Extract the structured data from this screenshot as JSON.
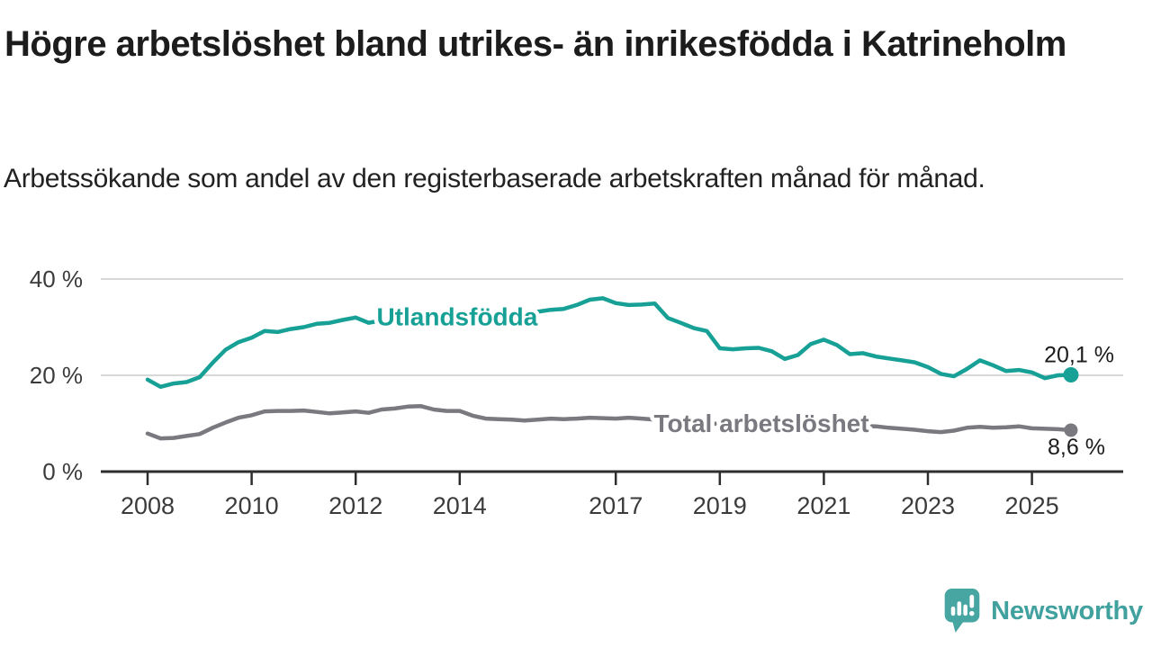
{
  "title": "Högre arbetslöshet bland utrikes- än inrikesfödda i Katrineholm",
  "subtitle": "Arbetssökande som andel av den registerbaserade arbetskraften månad för månad.",
  "branding": {
    "logo_text": "Newsworthy",
    "logo_color": "#41a19e"
  },
  "colors": {
    "axis": "#2e2e2e",
    "grid": "#d8d8d8",
    "tick_text": "#3b3b3b",
    "value_text": "#1c1c1c",
    "background": "#ffffff"
  },
  "chart_data": {
    "type": "line",
    "title": "Högre arbetslöshet bland utrikes- än inrikesfödda i Katrineholm",
    "subtitle": "Arbetssökande som andel av den registerbaserade arbetskraften månad för månad.",
    "unit": "%",
    "grid": "horizontal",
    "legend_position": "inline-labels",
    "x_start": 2008,
    "x_step_years": 0.25,
    "x_range_years": [
      2008,
      2025.75
    ],
    "ylim": [
      0,
      44
    ],
    "x_ticks": [
      2008,
      2010,
      2012,
      2014,
      2017,
      2019,
      2021,
      2023,
      2025
    ],
    "y_ticks": [
      {
        "value": 0,
        "label": "0 %",
        "grid": false
      },
      {
        "value": 20,
        "label": "20 %",
        "grid": true
      },
      {
        "value": 40,
        "label": "40 %",
        "grid": true
      }
    ],
    "series": [
      {
        "name": "Utlandsfödda",
        "color": "#17a096",
        "end_value": 20.1,
        "end_value_label": "20,1 %",
        "label_anchor": {
          "t": 2013.95,
          "v": 32.2
        },
        "values": [
          19.1,
          17.6,
          18.3,
          18.6,
          19.6,
          22.6,
          25.3,
          26.9,
          27.8,
          29.2,
          29.0,
          29.6,
          30.0,
          30.7,
          30.9,
          31.5,
          32.0,
          30.9,
          31.4,
          31.4,
          31.3,
          31.0,
          31.0,
          31.2,
          31.4,
          31.7,
          32.0,
          32.4,
          32.6,
          32.9,
          33.2,
          33.6,
          33.8,
          34.6,
          35.7,
          36.0,
          35.0,
          34.6,
          34.7,
          34.9,
          31.9,
          30.9,
          29.8,
          29.2,
          25.6,
          25.4,
          25.6,
          25.7,
          25.0,
          23.4,
          24.2,
          26.5,
          27.4,
          26.3,
          24.4,
          24.6,
          23.9,
          23.5,
          23.1,
          22.7,
          21.7,
          20.3,
          19.8,
          21.3,
          23.1,
          22.1,
          20.9,
          21.1,
          20.6,
          19.4,
          20.0,
          20.1
        ]
      },
      {
        "name": "Total arbetslöshet",
        "color": "#7a7980",
        "end_value": 8.6,
        "end_value_label": "8,6 %",
        "label_anchor": {
          "t": 2019.8,
          "v": 10.1
        },
        "values": [
          7.9,
          6.9,
          7.0,
          7.4,
          7.8,
          9.1,
          10.2,
          11.2,
          11.7,
          12.5,
          12.6,
          12.6,
          12.7,
          12.4,
          12.1,
          12.3,
          12.5,
          12.2,
          12.9,
          13.1,
          13.5,
          13.6,
          12.9,
          12.6,
          12.6,
          11.6,
          11.0,
          10.9,
          10.8,
          10.6,
          10.8,
          11.0,
          10.9,
          11.0,
          11.2,
          11.1,
          11.0,
          11.2,
          11.0,
          10.8,
          10.6,
          10.4,
          10.2,
          10.0,
          9.9,
          9.8,
          9.8,
          9.9,
          10.2,
          10.8,
          11.0,
          10.6,
          10.2,
          9.9,
          9.7,
          9.5,
          9.4,
          9.1,
          8.9,
          8.7,
          8.4,
          8.2,
          8.5,
          9.1,
          9.3,
          9.1,
          9.2,
          9.4,
          9.0,
          8.9,
          8.8,
          8.6
        ]
      }
    ]
  }
}
